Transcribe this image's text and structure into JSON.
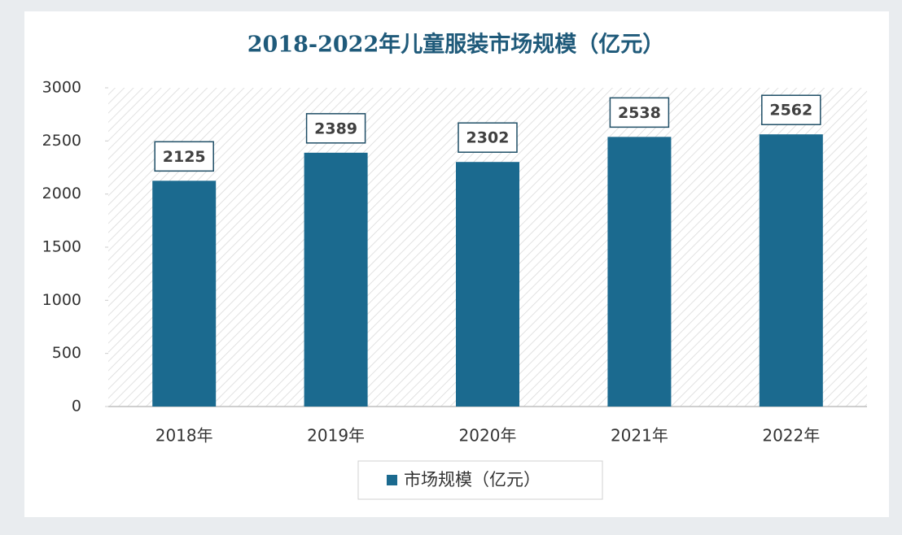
{
  "chart_data": {
    "type": "bar",
    "title": "2018-2022年儿童服装市场规模（亿元）",
    "categories": [
      "2018年",
      "2019年",
      "2020年",
      "2021年",
      "2022年"
    ],
    "series": [
      {
        "name": "市场规模（亿元）",
        "color": "#1b6a8f",
        "values": [
          2125,
          2389,
          2302,
          2538,
          2562
        ]
      }
    ],
    "ylim": [
      0,
      3000
    ],
    "yticks": [
      0,
      500,
      1000,
      1500,
      2000,
      2500,
      3000
    ],
    "legend": "bottom"
  }
}
